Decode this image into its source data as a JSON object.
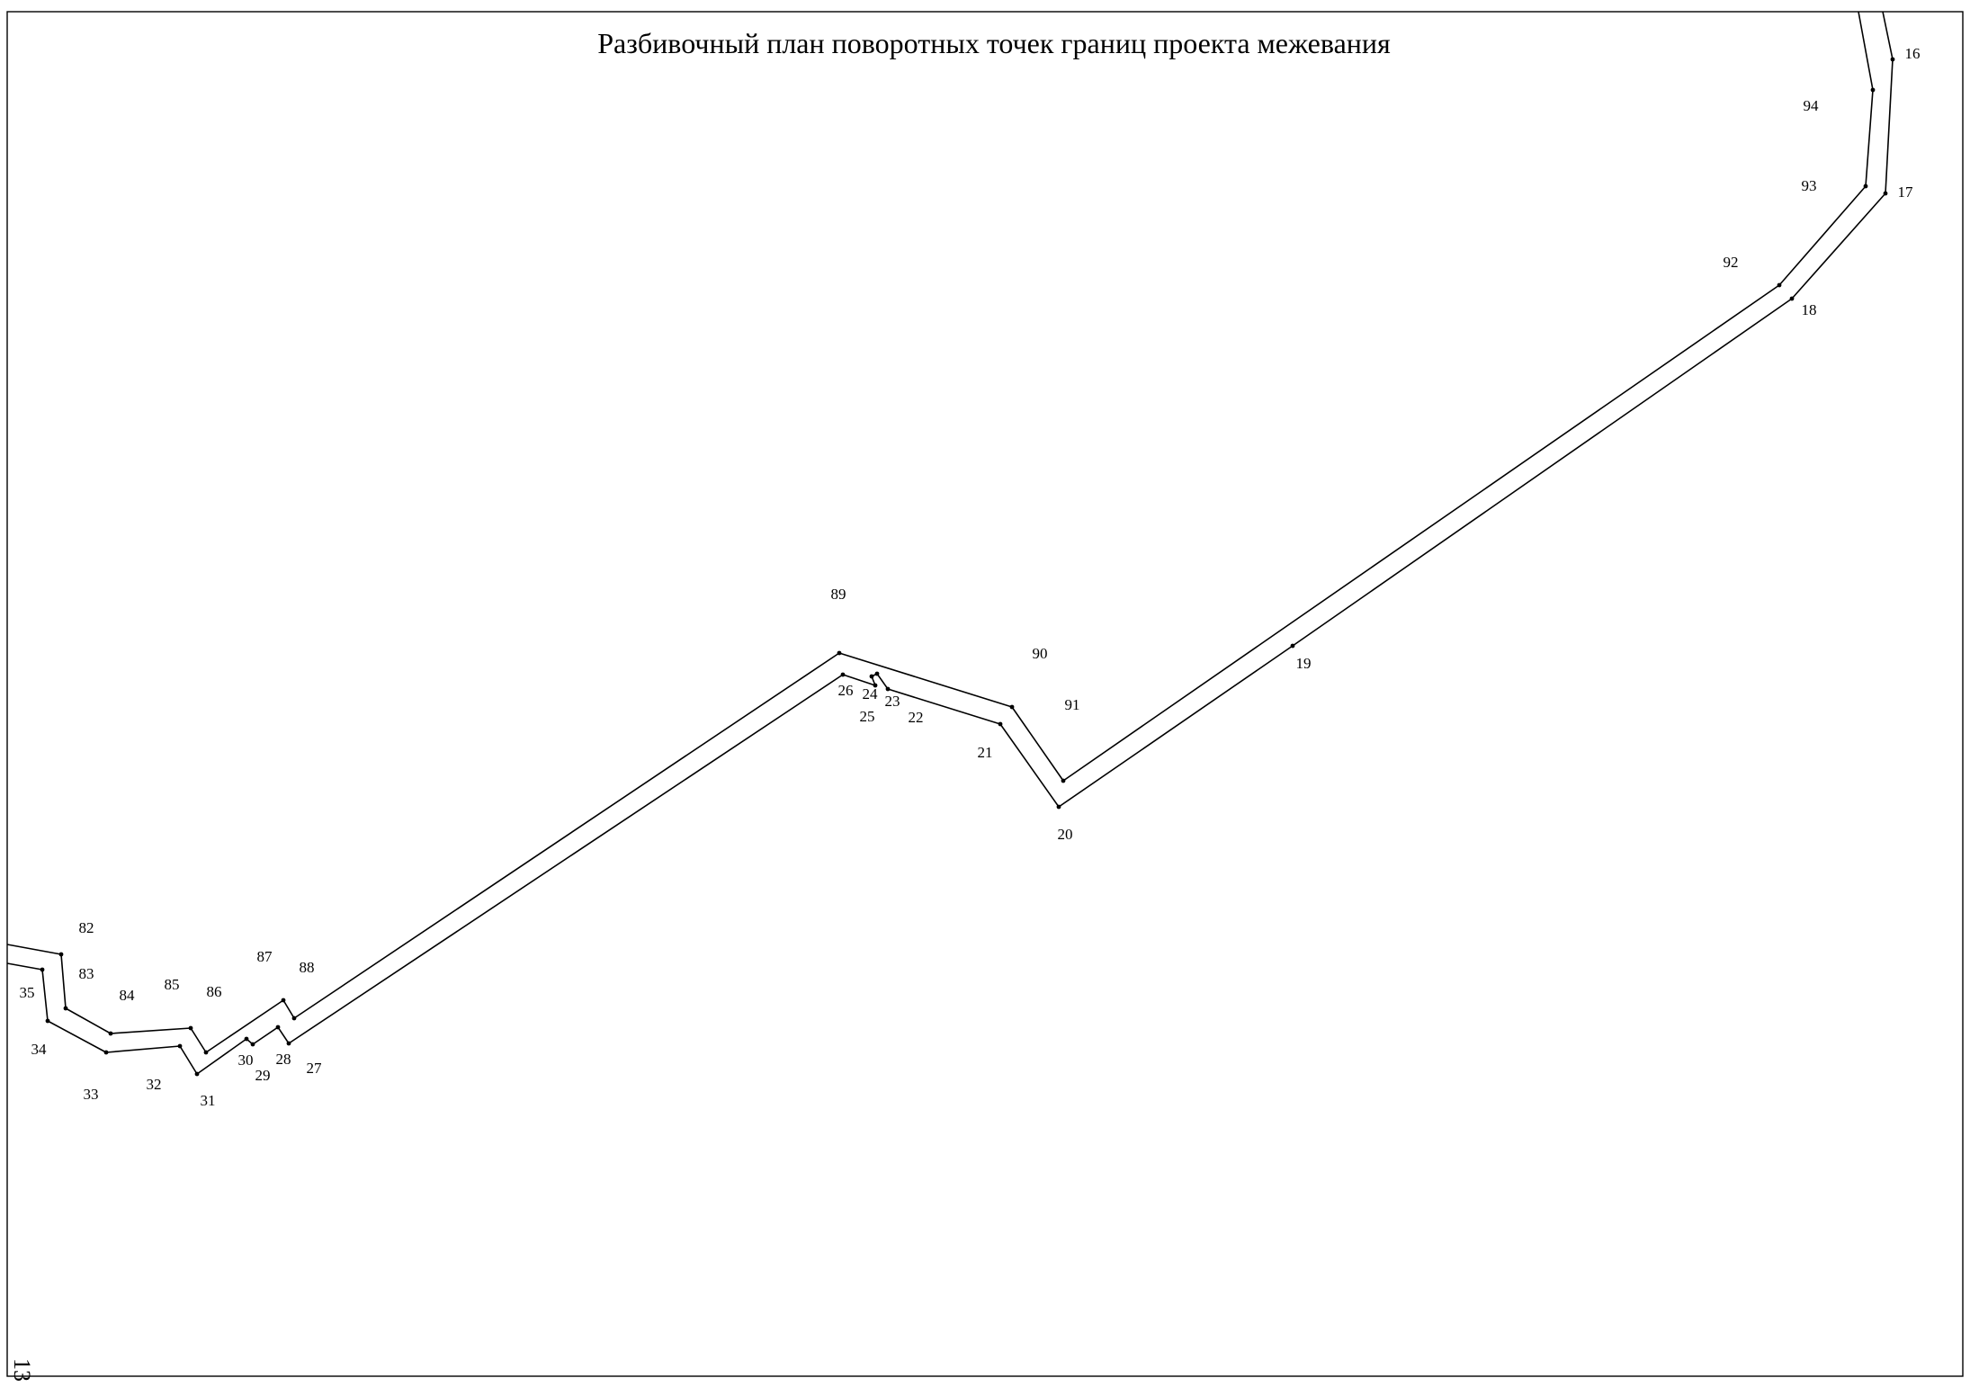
{
  "title": "Разбивочный план поворотных точек границ проекта межевания",
  "page_number": "13",
  "colors": {
    "line": "#000000",
    "background": "#ffffff"
  },
  "outer_boundary_points": [
    "35",
    "34",
    "33",
    "32",
    "31",
    "30",
    "29",
    "28",
    "27",
    "26",
    "25",
    "24",
    "23",
    "22",
    "21",
    "20",
    "19",
    "18",
    "17",
    "16"
  ],
  "inner_boundary_points": [
    "82",
    "83",
    "84",
    "85",
    "86",
    "87",
    "88",
    "89",
    "90",
    "91",
    "92",
    "93",
    "94"
  ],
  "point_labels": [
    {
      "id": "16",
      "text": "16"
    },
    {
      "id": "17",
      "text": "17"
    },
    {
      "id": "18",
      "text": "18"
    },
    {
      "id": "19",
      "text": "19"
    },
    {
      "id": "20",
      "text": "20"
    },
    {
      "id": "21",
      "text": "21"
    },
    {
      "id": "22",
      "text": "22"
    },
    {
      "id": "23",
      "text": "23"
    },
    {
      "id": "24",
      "text": "24"
    },
    {
      "id": "25",
      "text": "25"
    },
    {
      "id": "26",
      "text": "26"
    },
    {
      "id": "27",
      "text": "27"
    },
    {
      "id": "28",
      "text": "28"
    },
    {
      "id": "29",
      "text": "29"
    },
    {
      "id": "30",
      "text": "30"
    },
    {
      "id": "31",
      "text": "31"
    },
    {
      "id": "32",
      "text": "32"
    },
    {
      "id": "33",
      "text": "33"
    },
    {
      "id": "34",
      "text": "34"
    },
    {
      "id": "35",
      "text": "35"
    },
    {
      "id": "82",
      "text": "82"
    },
    {
      "id": "83",
      "text": "83"
    },
    {
      "id": "84",
      "text": "84"
    },
    {
      "id": "85",
      "text": "85"
    },
    {
      "id": "86",
      "text": "86"
    },
    {
      "id": "87",
      "text": "87"
    },
    {
      "id": "88",
      "text": "88"
    },
    {
      "id": "89",
      "text": "89"
    },
    {
      "id": "90",
      "text": "90"
    },
    {
      "id": "91",
      "text": "91"
    },
    {
      "id": "92",
      "text": "92"
    },
    {
      "id": "93",
      "text": "93"
    },
    {
      "id": "94",
      "text": "94"
    }
  ]
}
